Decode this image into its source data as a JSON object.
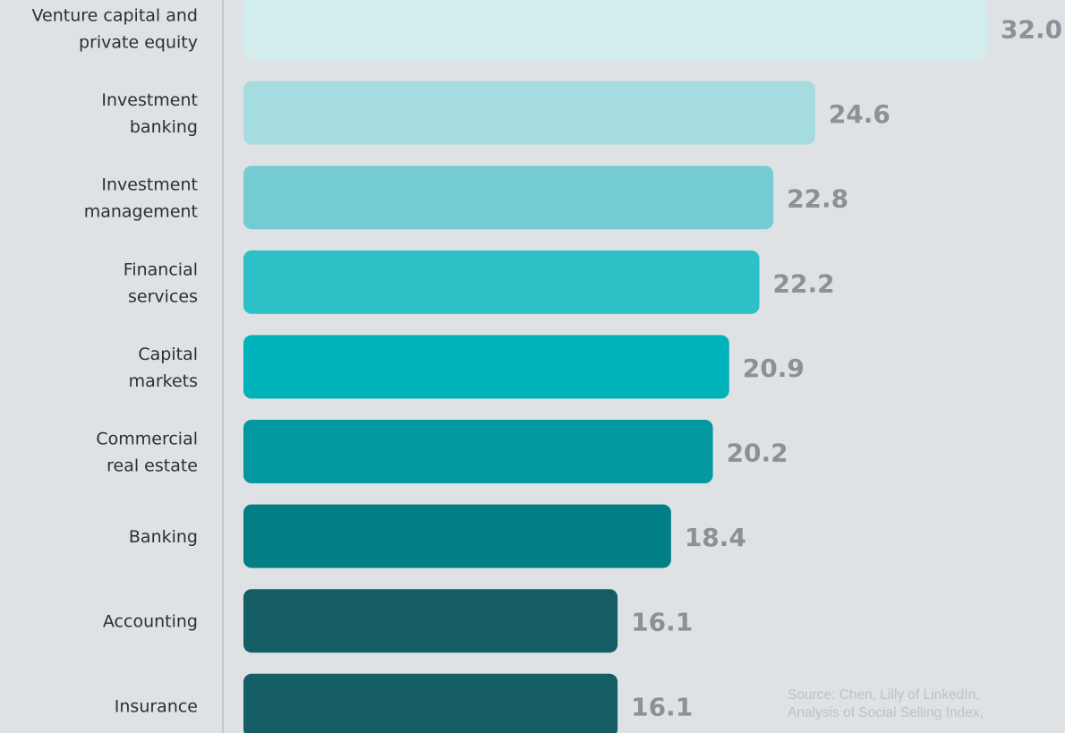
{
  "chart_data": {
    "type": "bar",
    "orientation": "horizontal",
    "categories": [
      [
        "Venture capital and",
        "private equity"
      ],
      [
        "Investment",
        "banking"
      ],
      [
        "Investment",
        "management"
      ],
      [
        "Financial",
        "services"
      ],
      [
        "Capital",
        "markets"
      ],
      [
        "Commercial",
        "real estate"
      ],
      [
        "Banking"
      ],
      [
        "Accounting"
      ],
      [
        "Insurance"
      ]
    ],
    "values": [
      32.0,
      24.6,
      22.8,
      22.2,
      20.9,
      20.2,
      18.4,
      16.1,
      16.1
    ],
    "value_labels": [
      "32.0",
      "24.6",
      "22.8",
      "22.2",
      "20.9",
      "20.2",
      "18.4",
      "16.1",
      "16.1"
    ],
    "bar_colors": [
      "#d3ecec",
      "#a5dcdf",
      "#75cbd2",
      "#2dc0c6",
      "#00b2b9",
      "#0399a0",
      "#017f84",
      "#155e66",
      "#155e66"
    ],
    "value_label_color": "#8c9197",
    "category_label_color": "#2e2e2e",
    "axis_color": "#b7bcc1",
    "background": "#dfe2e5",
    "title": "",
    "xlabel": "",
    "ylabel": "",
    "xlim": [
      0,
      32.0
    ],
    "grid": false,
    "legend": "none"
  },
  "source": {
    "line1": "Source: Chen, Lilly of LinkedIn,",
    "line2": "Analysis of Social Selling Index,"
  }
}
